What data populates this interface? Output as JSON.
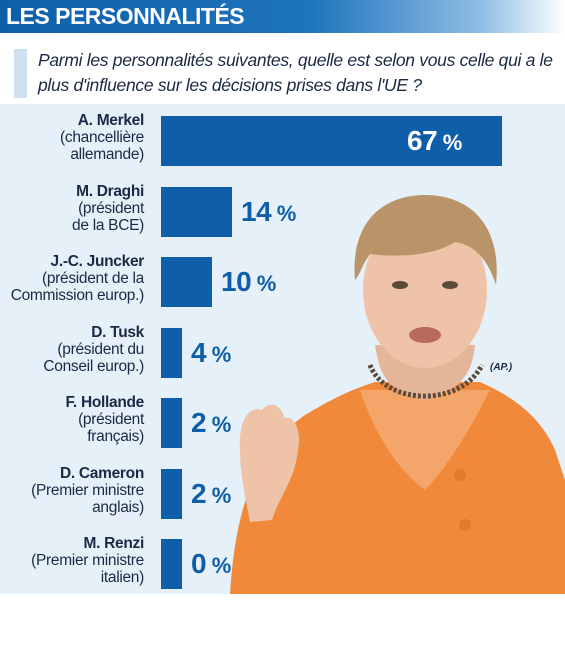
{
  "header": {
    "title": "LES PERSONNALITÉS"
  },
  "question": "Parmi les personnalités suivantes, quelle est selon vous celle qui a le plus d'influence sur les décisions prises dans l'UE ?",
  "photo_credit": "(AP.)",
  "colors": {
    "bar": "#0f5ea9",
    "header": "#0d5fa8",
    "panel": "#e6f0f9"
  },
  "chart_data": {
    "type": "bar",
    "orientation": "horizontal",
    "title": "LES PERSONNALITÉS",
    "unit": "%",
    "xlim": [
      0,
      67
    ],
    "categories": [
      {
        "name": "A. Merkel",
        "role": [
          "(chancellière",
          "allemande)"
        ]
      },
      {
        "name": "M. Draghi",
        "role": [
          "(président",
          "de la BCE)"
        ]
      },
      {
        "name": "J.-C. Juncker",
        "role": [
          "(président de la",
          "Commission europ.)"
        ]
      },
      {
        "name": "D. Tusk",
        "role": [
          "(président du",
          "Conseil europ.)"
        ]
      },
      {
        "name": "F. Hollande",
        "role": [
          "(président",
          "français)"
        ]
      },
      {
        "name": "D. Cameron",
        "role": [
          "(Premier ministre",
          "anglais)"
        ]
      },
      {
        "name": "M. Renzi",
        "role": [
          "(Premier ministre",
          "italien)"
        ]
      }
    ],
    "values": [
      67,
      14,
      10,
      4,
      2,
      2,
      0
    ],
    "value_labels": [
      "67",
      "14",
      "10",
      "4",
      "2",
      "2",
      "0"
    ]
  }
}
